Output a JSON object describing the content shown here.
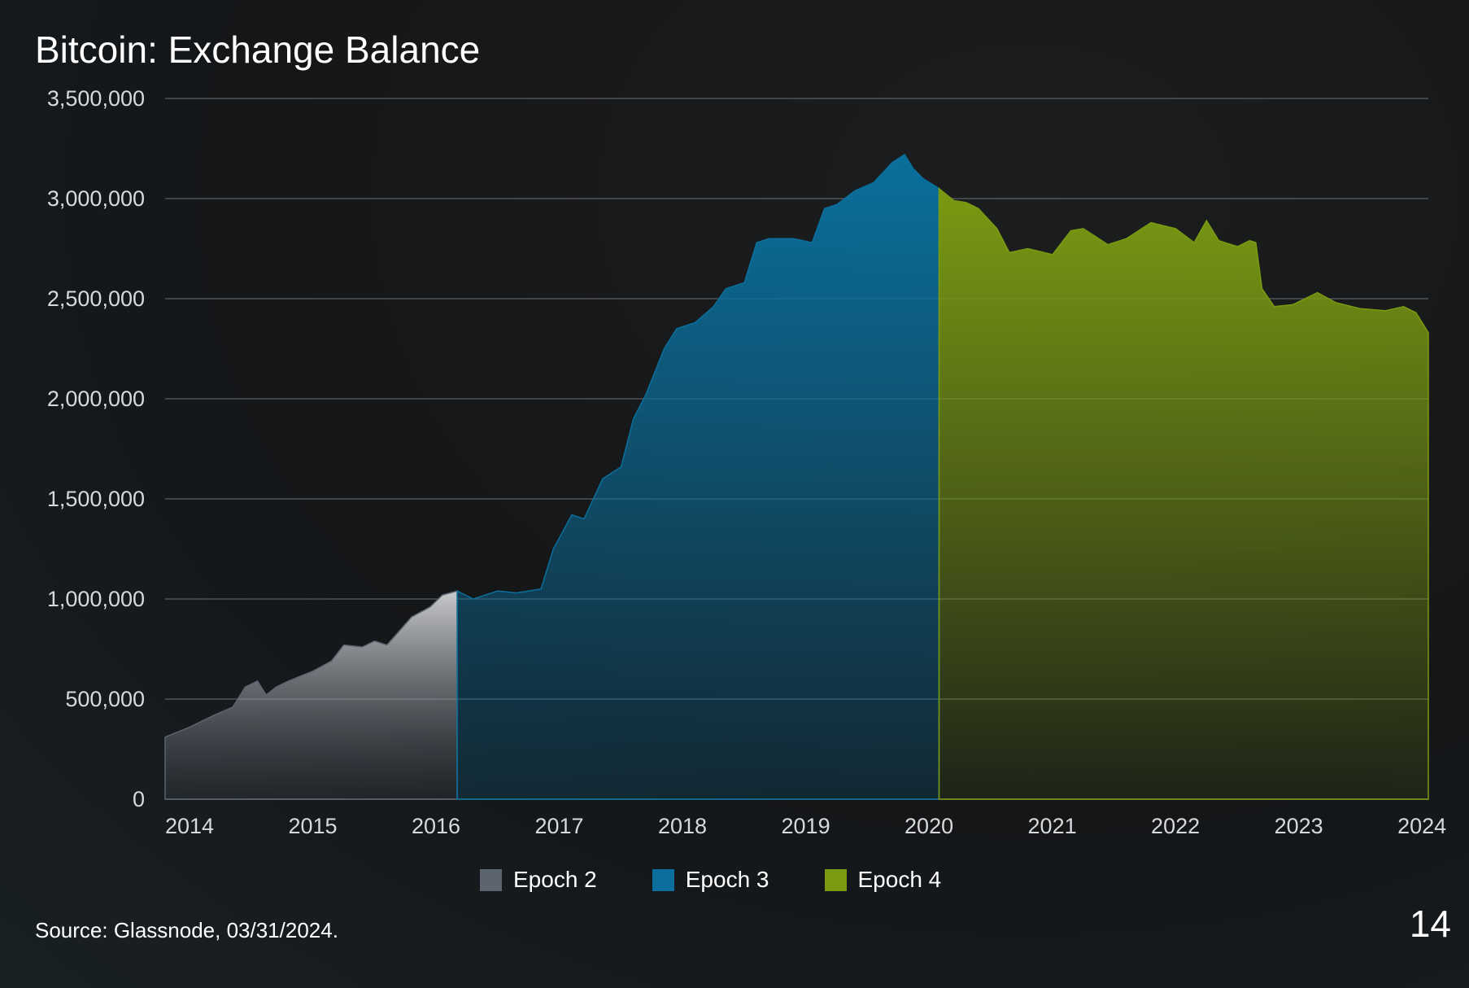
{
  "page": {
    "title": "Bitcoin: Exchange Balance",
    "source": "Source: Glassnode, 03/31/2024.",
    "page_number": "14"
  },
  "colors": {
    "background": "#151719",
    "gridline": "#5b5f63",
    "tick_text": "#d7d9db",
    "epoch2": "#5c6470",
    "epoch2_fill_top": "#c9cacc",
    "epoch3": "#0a6f9c",
    "epoch4": "#7a9a12"
  },
  "legend": {
    "items": [
      {
        "label": "Epoch 2",
        "color": "#5c6470"
      },
      {
        "label": "Epoch 3",
        "color": "#0a6f9c"
      },
      {
        "label": "Epoch 4",
        "color": "#7a9a12"
      }
    ],
    "placement": "bottom-center"
  },
  "chart_data": {
    "type": "area",
    "title": "Bitcoin: Exchange Balance",
    "xlabel": "",
    "ylabel": "",
    "grid": true,
    "xlim": [
      2014.0,
      2024.25
    ],
    "ylim": [
      0,
      3500000
    ],
    "x_ticks": [
      "2014",
      "2015",
      "2016",
      "2017",
      "2018",
      "2019",
      "2020",
      "2021",
      "2022",
      "2023",
      "2024"
    ],
    "y_ticks": [
      "0",
      "500,000",
      "1,000,000",
      "1,500,000",
      "2,000,000",
      "2,500,000",
      "3,000,000",
      "3,500,000"
    ],
    "series": [
      {
        "name": "Epoch 2",
        "color": "#5c6470",
        "x": [
          2014.0,
          2014.2,
          2014.4,
          2014.55,
          2014.65,
          2014.75,
          2014.82,
          2014.9,
          2015.0,
          2015.2,
          2015.35,
          2015.45,
          2015.6,
          2015.7,
          2015.8,
          2015.9,
          2016.0,
          2016.15,
          2016.25,
          2016.37
        ],
        "y": [
          310000,
          360000,
          420000,
          460000,
          560000,
          590000,
          520000,
          560000,
          590000,
          640000,
          690000,
          770000,
          760000,
          790000,
          770000,
          840000,
          910000,
          960000,
          1020000,
          1040000
        ]
      },
      {
        "name": "Epoch 3",
        "color": "#0a6f9c",
        "x": [
          2016.37,
          2016.5,
          2016.7,
          2016.85,
          2017.05,
          2017.15,
          2017.3,
          2017.4,
          2017.55,
          2017.7,
          2017.8,
          2017.9,
          2018.05,
          2018.15,
          2018.3,
          2018.45,
          2018.55,
          2018.7,
          2018.8,
          2018.9,
          2019.1,
          2019.25,
          2019.35,
          2019.45,
          2019.6,
          2019.75,
          2019.9,
          2020.0,
          2020.07,
          2020.15,
          2020.28
        ],
        "y": [
          1040000,
          1000000,
          1040000,
          1030000,
          1050000,
          1250000,
          1420000,
          1400000,
          1600000,
          1660000,
          1900000,
          2020000,
          2250000,
          2350000,
          2380000,
          2460000,
          2550000,
          2580000,
          2780000,
          2800000,
          2800000,
          2780000,
          2950000,
          2970000,
          3040000,
          3080000,
          3180000,
          3220000,
          3150000,
          3100000,
          3050000
        ]
      },
      {
        "name": "Epoch 4",
        "color": "#7a9a12",
        "x": [
          2020.28,
          2020.4,
          2020.5,
          2020.6,
          2020.75,
          2020.85,
          2021.0,
          2021.2,
          2021.35,
          2021.45,
          2021.65,
          2021.8,
          2022.0,
          2022.2,
          2022.35,
          2022.45,
          2022.55,
          2022.7,
          2022.8,
          2022.85,
          2022.9,
          2023.0,
          2023.15,
          2023.35,
          2023.5,
          2023.7,
          2023.9,
          2024.05,
          2024.15,
          2024.25
        ],
        "y": [
          3050000,
          2990000,
          2980000,
          2950000,
          2850000,
          2730000,
          2750000,
          2720000,
          2840000,
          2850000,
          2770000,
          2800000,
          2880000,
          2850000,
          2780000,
          2890000,
          2790000,
          2760000,
          2790000,
          2780000,
          2550000,
          2460000,
          2470000,
          2530000,
          2480000,
          2450000,
          2440000,
          2460000,
          2430000,
          2330000
        ]
      }
    ]
  }
}
